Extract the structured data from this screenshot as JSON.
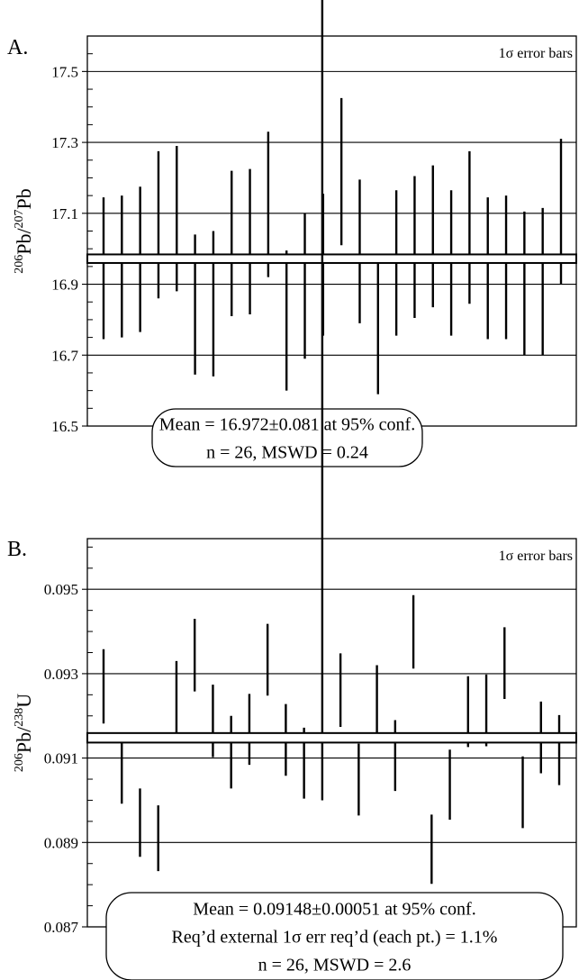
{
  "chart_data": [
    {
      "type": "errorbar",
      "panel_label": "A.",
      "ylabel": {
        "sup1": "206",
        "main1": "Pb/",
        "sup2": "207",
        "main2": "Pb"
      },
      "ylim": [
        16.5,
        17.6
      ],
      "major_ticks": [
        17.5,
        17.3,
        17.1,
        16.9,
        16.7,
        16.5
      ],
      "minor_step": 0.05,
      "major_gridlines": true,
      "legend_note": "1σ error bars",
      "mean": 16.972,
      "mean_band": [
        16.965,
        16.979
      ],
      "annotation_lines": [
        "Mean = 16.972±0.081 at 95% conf.",
        "n = 26, MSWD = 0.24"
      ],
      "points": [
        {
          "n": 1,
          "low": 16.745,
          "high": 17.145
        },
        {
          "n": 2,
          "low": 16.75,
          "high": 17.15
        },
        {
          "n": 3,
          "low": 16.765,
          "high": 17.175
        },
        {
          "n": 4,
          "low": 16.86,
          "high": 17.275
        },
        {
          "n": 5,
          "low": 16.88,
          "high": 17.29
        },
        {
          "n": 6,
          "low": 16.645,
          "high": 17.04
        },
        {
          "n": 7,
          "low": 16.64,
          "high": 17.05
        },
        {
          "n": 8,
          "low": 16.81,
          "high": 17.22
        },
        {
          "n": 9,
          "low": 16.815,
          "high": 17.225
        },
        {
          "n": 10,
          "low": 16.92,
          "high": 17.33
        },
        {
          "n": 11,
          "low": 16.6,
          "high": 16.995
        },
        {
          "n": 12,
          "low": 16.69,
          "high": 17.1
        },
        {
          "n": 13,
          "low": 16.755,
          "high": 17.155
        },
        {
          "n": 14,
          "low": 17.01,
          "high": 17.425
        },
        {
          "n": 15,
          "low": 16.79,
          "high": 17.195
        },
        {
          "n": 16,
          "low": 16.59,
          "high": 16.985
        },
        {
          "n": 17,
          "low": 16.755,
          "high": 17.165
        },
        {
          "n": 18,
          "low": 16.805,
          "high": 17.205
        },
        {
          "n": 19,
          "low": 16.835,
          "high": 17.235
        },
        {
          "n": 20,
          "low": 16.755,
          "high": 17.165
        },
        {
          "n": 21,
          "low": 16.845,
          "high": 17.275
        },
        {
          "n": 22,
          "low": 16.745,
          "high": 17.145
        },
        {
          "n": 23,
          "low": 16.745,
          "high": 17.15
        },
        {
          "n": 24,
          "low": 16.7,
          "high": 17.105
        },
        {
          "n": 25,
          "low": 16.7,
          "high": 17.115
        },
        {
          "n": 26,
          "low": 16.9,
          "high": 17.31
        }
      ]
    },
    {
      "type": "errorbar",
      "panel_label": "B.",
      "ylabel": {
        "sup1": "206",
        "main1": "Pb/",
        "sup2": "238",
        "main2": "U"
      },
      "ylim": [
        0.087,
        0.0962
      ],
      "major_ticks": [
        0.095,
        0.093,
        0.091,
        0.089,
        0.087
      ],
      "minor_step": 0.0005,
      "major_gridlines": true,
      "legend_note": "1σ error bars",
      "mean": 0.09148,
      "mean_band": [
        0.09141,
        0.09155
      ],
      "annotation_lines": [
        "Mean = 0.09148±0.00051 at 95% conf.",
        "Req’d external 1σ err req’d (each pt.) = 1.1%",
        "n = 26, MSWD = 2.6"
      ],
      "points": [
        {
          "n": 1,
          "low": 0.09182,
          "high": 0.09358
        },
        {
          "n": 2,
          "low": 0.08992,
          "high": 0.09158
        },
        {
          "n": 3,
          "low": 0.08866,
          "high": 0.09028
        },
        {
          "n": 4,
          "low": 0.08832,
          "high": 0.08988
        },
        {
          "n": 5,
          "low": 0.09158,
          "high": 0.0933
        },
        {
          "n": 6,
          "low": 0.09258,
          "high": 0.0943
        },
        {
          "n": 7,
          "low": 0.09102,
          "high": 0.09274
        },
        {
          "n": 8,
          "low": 0.09028,
          "high": 0.092
        },
        {
          "n": 9,
          "low": 0.09084,
          "high": 0.09252
        },
        {
          "n": 10,
          "low": 0.09248,
          "high": 0.09418
        },
        {
          "n": 11,
          "low": 0.09058,
          "high": 0.09228
        },
        {
          "n": 12,
          "low": 0.09004,
          "high": 0.09172
        },
        {
          "n": 13,
          "low": 0.09
        },
        {
          "n": 14,
          "low": 0.09174,
          "high": 0.09348
        },
        {
          "n": 15,
          "low": 0.08964,
          "high": 0.09134
        },
        {
          "n": 16,
          "low": 0.09154,
          "high": 0.0932
        },
        {
          "n": 17,
          "low": 0.09022,
          "high": 0.0919
        },
        {
          "n": 18,
          "low": 0.09312,
          "high": 0.09486
        },
        {
          "n": 19,
          "low": 0.08802,
          "high": 0.08966
        },
        {
          "n": 20,
          "low": 0.08954,
          "high": 0.0912
        },
        {
          "n": 21,
          "low": 0.09126,
          "high": 0.09294
        },
        {
          "n": 22,
          "low": 0.09128,
          "high": 0.09298
        },
        {
          "n": 23,
          "low": 0.0924,
          "high": 0.0941
        },
        {
          "n": 24,
          "low": 0.08934,
          "high": 0.09104
        },
        {
          "n": 25,
          "low": 0.09064,
          "high": 0.09234
        },
        {
          "n": 26,
          "low": 0.09036,
          "high": 0.09202
        }
      ]
    }
  ]
}
